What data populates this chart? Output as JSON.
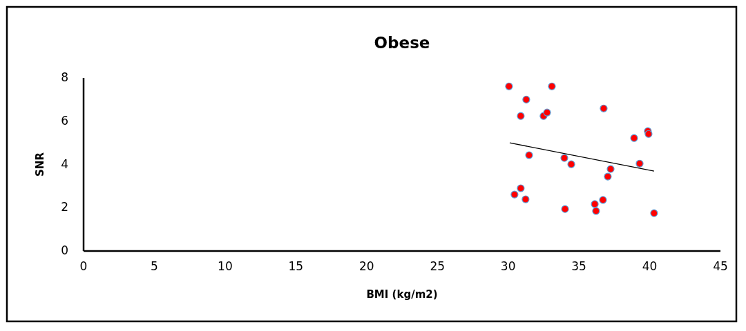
{
  "chart_data": {
    "type": "scatter",
    "title": "Obese",
    "xlabel": "BMI (kg/m2)",
    "ylabel": "SNR",
    "xlim": [
      0,
      45
    ],
    "xticks": [
      0,
      5,
      10,
      15,
      20,
      25,
      30,
      35,
      40,
      45
    ],
    "ylim": [
      0,
      8
    ],
    "yticks": [
      0,
      2,
      4,
      6,
      8
    ],
    "grid": false,
    "series": [
      {
        "color": "#ff0000",
        "marker": "circle",
        "x": [
          30.06,
          33.09,
          31.28,
          30.89,
          32.5,
          32.75,
          36.75,
          38.9,
          39.87,
          39.92,
          31.48,
          33.97,
          34.46,
          39.29,
          37.24,
          37.04,
          30.89,
          30.45,
          31.23,
          34.02,
          36.12,
          36.7,
          36.21,
          40.31
        ],
        "values": [
          7.61,
          7.61,
          7.0,
          6.24,
          6.24,
          6.4,
          6.59,
          5.22,
          5.54,
          5.41,
          4.43,
          4.3,
          4.01,
          4.04,
          3.79,
          3.44,
          2.9,
          2.61,
          2.39,
          1.94,
          2.17,
          2.36,
          1.85,
          1.75
        ]
      },
      {
        "type": "line",
        "color": "#000000",
        "marker": "none",
        "x": [
          30.11,
          40.31
        ],
        "values": [
          5.0,
          3.69
        ]
      }
    ]
  }
}
